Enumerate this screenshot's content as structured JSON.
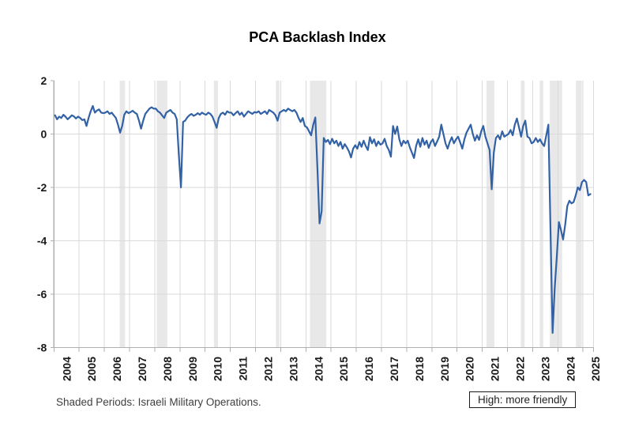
{
  "title": "PCA Backlash Index",
  "footnote": "Shaded Periods: Israeli Military Operations.",
  "legend_box": "High: more friendly",
  "colors": {
    "line": "#3262a5",
    "shaded_band": "#e8e8e8",
    "gridline": "#dadada",
    "axis": "#b0b0b0",
    "axis_text": "#1a1a1a",
    "footnote_text": "#3f3f3f"
  },
  "chart_data": {
    "type": "line",
    "title": "PCA Backlash Index",
    "xlabel": "",
    "ylabel": "",
    "frequency": "monthly",
    "xlim": [
      2004,
      2025.42
    ],
    "ylim": [
      -8,
      2
    ],
    "yticks": [
      2,
      0,
      -2,
      -4,
      -6,
      -8
    ],
    "xtick_labels": [
      "2004",
      "2005",
      "2006",
      "2007",
      "2008",
      "2009",
      "2010",
      "2011",
      "2012",
      "2013",
      "2014",
      "2015",
      "2016",
      "2017",
      "2018",
      "2019",
      "2020",
      "2021",
      "2022",
      "2023",
      "2024",
      "2025"
    ],
    "grid": "light-gray-both-axes",
    "legend_position": "none",
    "annotation": "High: more friendly",
    "shaded_periods": [
      {
        "start": 2006.61,
        "end": 2006.82
      },
      {
        "start": 2008.08,
        "end": 2008.5
      },
      {
        "start": 2010.35,
        "end": 2010.51
      },
      {
        "start": 2012.81,
        "end": 2012.95
      },
      {
        "start": 2014.16,
        "end": 2014.81
      },
      {
        "start": 2021.17,
        "end": 2021.48
      },
      {
        "start": 2022.53,
        "end": 2022.68
      },
      {
        "start": 2023.28,
        "end": 2023.42
      },
      {
        "start": 2023.68,
        "end": 2024.17
      },
      {
        "start": 2024.72,
        "end": 2024.95
      }
    ],
    "values_by_year": {
      "2004": [
        0.7,
        0.55,
        0.65,
        0.6,
        0.72,
        0.65,
        0.55,
        0.62,
        0.7,
        0.66,
        0.58,
        0.65
      ],
      "2005": [
        0.6,
        0.52,
        0.55,
        0.3,
        0.6,
        0.85,
        1.05,
        0.8,
        0.88,
        0.92,
        0.8,
        0.78
      ],
      "2006": [
        0.8,
        0.85,
        0.75,
        0.8,
        0.7,
        0.6,
        0.35,
        0.05,
        0.3,
        0.72,
        0.85,
        0.78
      ],
      "2007": [
        0.82,
        0.87,
        0.8,
        0.75,
        0.5,
        0.2,
        0.5,
        0.75,
        0.85,
        0.95,
        1.0,
        0.95
      ],
      "2008": [
        0.95,
        0.85,
        0.8,
        0.7,
        0.6,
        0.8,
        0.85,
        0.9,
        0.8,
        0.75,
        0.55,
        -0.8
      ],
      "2009": [
        -2.0,
        0.45,
        0.5,
        0.62,
        0.7,
        0.75,
        0.68,
        0.72,
        0.78,
        0.72,
        0.8,
        0.75
      ],
      "2010": [
        0.72,
        0.8,
        0.75,
        0.65,
        0.45,
        0.23,
        0.6,
        0.75,
        0.8,
        0.72,
        0.85,
        0.8
      ],
      "2011": [
        0.8,
        0.7,
        0.78,
        0.85,
        0.72,
        0.8,
        0.65,
        0.75,
        0.85,
        0.8,
        0.75,
        0.82
      ],
      "2012": [
        0.8,
        0.85,
        0.75,
        0.8,
        0.85,
        0.75,
        0.9,
        0.85,
        0.8,
        0.7,
        0.5,
        0.8
      ],
      "2013": [
        0.85,
        0.9,
        0.85,
        0.95,
        0.9,
        0.85,
        0.9,
        0.8,
        0.6,
        0.45,
        0.6,
        0.3
      ],
      "2014": [
        0.25,
        0.1,
        -0.05,
        0.35,
        0.62,
        -1.3,
        -3.35,
        -2.9,
        -0.15,
        -0.3,
        -0.22,
        -0.38
      ],
      "2015": [
        -0.18,
        -0.35,
        -0.25,
        -0.45,
        -0.3,
        -0.55,
        -0.38,
        -0.5,
        -0.65,
        -0.88,
        -0.55,
        -0.42
      ],
      "2016": [
        -0.55,
        -0.3,
        -0.48,
        -0.25,
        -0.45,
        -0.6,
        -0.12,
        -0.35,
        -0.2,
        -0.45,
        -0.28,
        -0.4
      ],
      "2017": [
        -0.35,
        -0.18,
        -0.45,
        -0.6,
        -0.85,
        0.3,
        0.0,
        0.28,
        -0.2,
        -0.45,
        -0.25,
        -0.35
      ],
      "2018": [
        -0.25,
        -0.5,
        -0.7,
        -0.9,
        -0.45,
        -0.2,
        -0.48,
        -0.15,
        -0.4,
        -0.25,
        -0.52,
        -0.3
      ],
      "2019": [
        -0.2,
        -0.45,
        -0.28,
        -0.1,
        0.35,
        0.0,
        -0.35,
        -0.55,
        -0.3,
        -0.12,
        -0.35,
        -0.2
      ],
      "2020": [
        -0.1,
        -0.32,
        -0.55,
        -0.2,
        0.05,
        0.2,
        0.35,
        0.0,
        -0.25,
        -0.05,
        -0.22,
        0.1
      ],
      "2021": [
        0.3,
        -0.1,
        -0.35,
        -0.6,
        -2.07,
        -0.7,
        -0.15,
        -0.05,
        -0.2,
        0.1,
        -0.1,
        -0.05
      ],
      "2022": [
        0.0,
        0.15,
        -0.05,
        0.35,
        0.58,
        0.25,
        -0.1,
        0.3,
        0.5,
        -0.1,
        -0.15,
        -0.35
      ],
      "2023": [
        -0.3,
        -0.15,
        -0.3,
        -0.2,
        -0.35,
        -0.45,
        -0.05,
        0.35,
        -3.6,
        -7.45,
        -5.8,
        -4.6
      ],
      "2024": [
        -3.3,
        -3.6,
        -3.95,
        -3.4,
        -2.7,
        -2.5,
        -2.6,
        -2.55,
        -2.3,
        -2.0,
        -2.1,
        -1.8
      ],
      "2025": [
        -1.72,
        -1.8,
        -2.3,
        -2.25
      ]
    }
  }
}
